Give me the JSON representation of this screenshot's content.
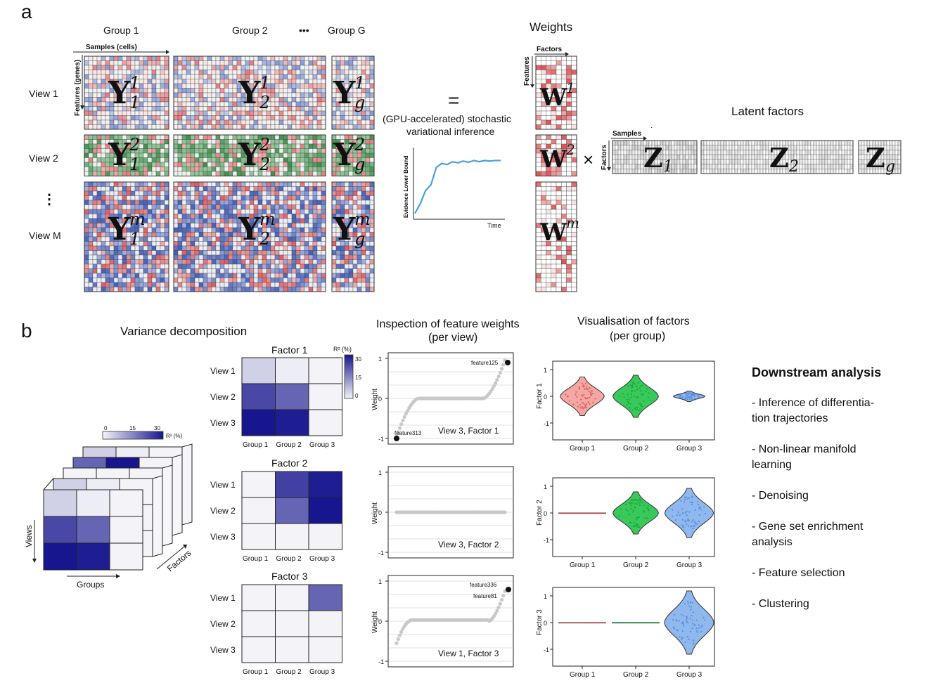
{
  "panel_a": {
    "label": "a",
    "group_labels": [
      "Group 1",
      "Group 2",
      "•••",
      "Group G"
    ],
    "samples_label": "Samples (cells)",
    "features_label": "Features (genes)",
    "view_labels": [
      "View 1",
      "View 2",
      "⋮",
      "View M"
    ],
    "matrix_base": "Y",
    "group_subscripts": [
      "1",
      "2",
      "g"
    ],
    "view_superscripts": [
      "1",
      "2",
      "m"
    ],
    "equals": "=",
    "inference_text": [
      "(GPU-accelerated) stochastic",
      "variational inference"
    ],
    "elbo": {
      "ylabel": "Evidence Lower Bound",
      "xlabel": "Time",
      "curve": [
        0.05,
        0.22,
        0.45,
        0.55,
        0.85,
        0.92,
        0.9,
        0.95,
        0.93,
        0.96,
        0.94,
        0.97,
        0.95,
        0.97,
        0.96,
        0.97,
        0.97
      ]
    },
    "weights_title": "Weights",
    "weights_factors_label": "Factors",
    "weights_features_label": "Features",
    "weight_base": "W",
    "times": "×",
    "latent_title": "Latent factors",
    "latent_samples_label": "Samples",
    "latent_factors_label": "Factors",
    "latent_base": "Z",
    "latent_dot": "·"
  },
  "panel_b": {
    "label": "b",
    "variance_title": "Variance decomposition",
    "cube": {
      "scale_ticks": [
        "0",
        "15",
        "30"
      ],
      "scale_label": "R² (%)",
      "views_label": "Views",
      "groups_label": "Groups",
      "factors_label": "Factors"
    },
    "heatmap_legend": {
      "title": "R² (%)",
      "ticks": [
        "30",
        "15",
        "0"
      ]
    },
    "heatmaps": [
      {
        "title": "Factor 1",
        "rows": [
          "View 1",
          "View 2",
          "View 3"
        ],
        "cols": [
          "Group 1",
          "Group 2",
          "Group 3"
        ],
        "values": [
          [
            5,
            1,
            0
          ],
          [
            24,
            20,
            0
          ],
          [
            31,
            30,
            0
          ]
        ]
      },
      {
        "title": "Factor 2",
        "rows": [
          "View 1",
          "View 2",
          "View 3"
        ],
        "cols": [
          "Group 1",
          "Group 2",
          "Group 3"
        ],
        "values": [
          [
            0,
            25,
            30
          ],
          [
            0,
            20,
            31
          ],
          [
            0,
            0,
            0
          ]
        ]
      },
      {
        "title": "Factor 3",
        "rows": [
          "View 1",
          "View 2",
          "View 3"
        ],
        "cols": [
          "Group 1",
          "Group 2",
          "Group 3"
        ],
        "values": [
          [
            0,
            0,
            20
          ],
          [
            0,
            0,
            0
          ],
          [
            0,
            0,
            0
          ]
        ]
      }
    ],
    "weights_title": [
      "Inspection of feature weights",
      "(per view)"
    ],
    "weight_plots": [
      {
        "ylabel": "Weight",
        "yticks": [
          "1",
          "0",
          "-1"
        ],
        "caption": "View 3, Factor 1",
        "labels": [
          {
            "text": "feature125",
            "pos": "top"
          },
          {
            "text": "feature313",
            "pos": "bottom"
          }
        ],
        "shape": "both"
      },
      {
        "ylabel": "Weight",
        "yticks": [
          "1",
          "0",
          "-1"
        ],
        "caption": "View 3, Factor 2",
        "labels": [],
        "shape": "flat"
      },
      {
        "ylabel": "Weight",
        "yticks": [
          "1",
          "0",
          "-1"
        ],
        "caption": "View 1, Factor 3",
        "labels": [
          {
            "text": "feature336",
            "pos": "top"
          },
          {
            "text": "feature81",
            "pos": "top2"
          }
        ],
        "shape": "topheavy"
      }
    ],
    "factors_title": [
      "Visualisation of factors",
      "(per group)"
    ],
    "factor_plots": [
      {
        "ylabel": "Factor 1",
        "yticks": [
          "1",
          "0",
          "-1"
        ],
        "groups": [
          "Group 1",
          "Group 2",
          "Group 3"
        ],
        "spread": [
          0.55,
          0.6,
          0.15
        ]
      },
      {
        "ylabel": "Factor 2",
        "yticks": [
          "1",
          "0",
          "-1"
        ],
        "groups": [
          "Group 1",
          "Group 2",
          "Group 3"
        ],
        "spread": [
          0.02,
          0.6,
          0.7
        ]
      },
      {
        "ylabel": "Factor 3",
        "yticks": [
          "1",
          "0",
          "-1"
        ],
        "groups": [
          "Group 1",
          "Group 2",
          "Group 3"
        ],
        "spread": [
          0.02,
          0.02,
          0.9
        ]
      }
    ],
    "downstream": {
      "title": "Downstream analysis",
      "items": [
        [
          "- Inference of differentia-",
          "tion trajectories"
        ],
        [
          "- Non-linear manifold",
          "learning"
        ],
        [
          "- Denoising"
        ],
        [
          "- Gene set enrichment",
          "analysis"
        ],
        [
          "- Feature selection"
        ],
        [
          "- Clustering"
        ]
      ]
    }
  },
  "colors": {
    "heat_low": "#f4f4f8",
    "heat_high": "#17168f",
    "red": "#d9484f",
    "blue": "#4460b8",
    "green": "#3f8f4e",
    "elbo_line": "#4b9fdc",
    "weight_points": "#c8c8c8",
    "violin_red": "#f4a7a4",
    "violin_green": "#39c95a",
    "violin_blue": "#8fb8ef"
  }
}
